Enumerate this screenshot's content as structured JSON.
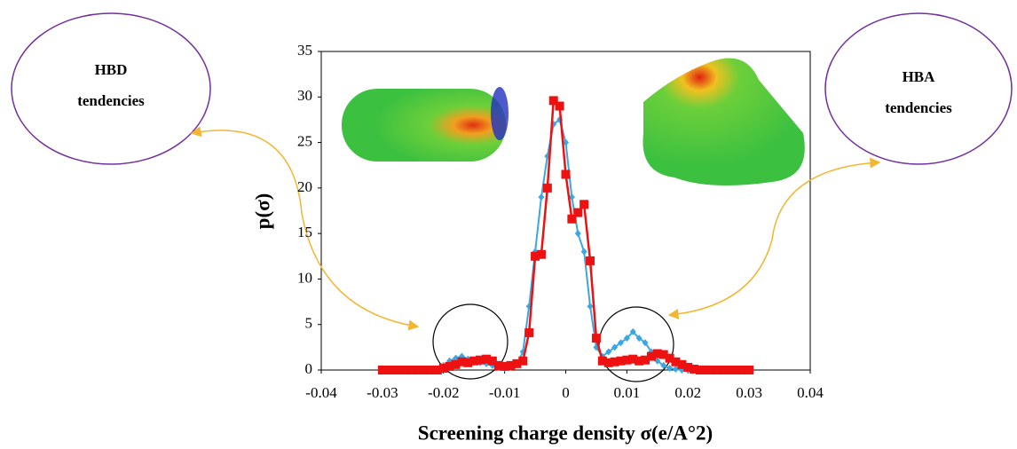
{
  "chart_data": {
    "type": "line",
    "x_label": "Screening charge density σ(e/A°2)",
    "y_label": "p(σ)",
    "annotations": [
      {
        "lines": [
          "HBD",
          "tendencies"
        ]
      },
      {
        "lines": [
          "HBA",
          "tendencies"
        ]
      }
    ],
    "x": [
      -0.03,
      -0.029,
      -0.028,
      -0.027,
      -0.026,
      -0.025,
      -0.024,
      -0.023,
      -0.022,
      -0.021,
      -0.02,
      -0.019,
      -0.018,
      -0.017,
      -0.016,
      -0.015,
      -0.014,
      -0.013,
      -0.012,
      -0.011,
      -0.01,
      -0.009,
      -0.008,
      -0.007,
      -0.006,
      -0.005,
      -0.004,
      -0.003,
      -0.002,
      -0.001,
      0,
      0.001,
      0.002,
      0.003,
      0.004,
      0.005,
      0.006,
      0.007,
      0.008,
      0.009,
      0.01,
      0.011,
      0.012,
      0.013,
      0.014,
      0.015,
      0.016,
      0.017,
      0.018,
      0.019,
      0.02,
      0.021,
      0.022,
      0.023,
      0.024,
      0.025,
      0.026,
      0.027,
      0.028,
      0.029,
      0.03
    ],
    "series": [
      {
        "color": "#3ba7e0",
        "marker": "diamond",
        "values": [
          0,
          0,
          0,
          0,
          0,
          0,
          0,
          0,
          0,
          0,
          0.5,
          1.0,
          1.3,
          1.5,
          1.2,
          1.0,
          0.8,
          0.7,
          0.5,
          0.3,
          0.2,
          0.3,
          0.6,
          2.0,
          7,
          13,
          19,
          23.5,
          27,
          27.5,
          25,
          19,
          15,
          13,
          7,
          2.5,
          1.5,
          2.0,
          2.5,
          3.0,
          3.5,
          4.2,
          3.5,
          3.0,
          2.0,
          1.0,
          0.5,
          0.2,
          0.1,
          0,
          0,
          0,
          0,
          0,
          0,
          0,
          0,
          0,
          0,
          0,
          0
        ]
      },
      {
        "color": "#ee1111",
        "marker": "square",
        "values": [
          0,
          0,
          0,
          0,
          0,
          0,
          0,
          0,
          0,
          0,
          0.2,
          0.4,
          0.6,
          0.9,
          0.8,
          1.0,
          1.1,
          1.2,
          1.0,
          0.5,
          0.4,
          0.5,
          0.7,
          1.0,
          4.1,
          12.5,
          12.7,
          20,
          29.6,
          29,
          21.5,
          16.6,
          17.3,
          18.2,
          12,
          3.5,
          1.0,
          0.8,
          0.9,
          1.0,
          1.1,
          1.2,
          1.0,
          1.1,
          1.5,
          1.8,
          1.7,
          1.3,
          0.9,
          0.6,
          0.3,
          0.1,
          0,
          0,
          0,
          0,
          0,
          0,
          0,
          0,
          0
        ]
      }
    ],
    "xlim": [
      -0.04,
      0.04
    ],
    "xticks": [
      -0.04,
      -0.03,
      -0.02,
      -0.01,
      0,
      0.01,
      0.02,
      0.03,
      0.04
    ],
    "ylim": [
      0,
      35
    ],
    "yticks": [
      0,
      5,
      10,
      15,
      20,
      25,
      30,
      35
    ]
  }
}
